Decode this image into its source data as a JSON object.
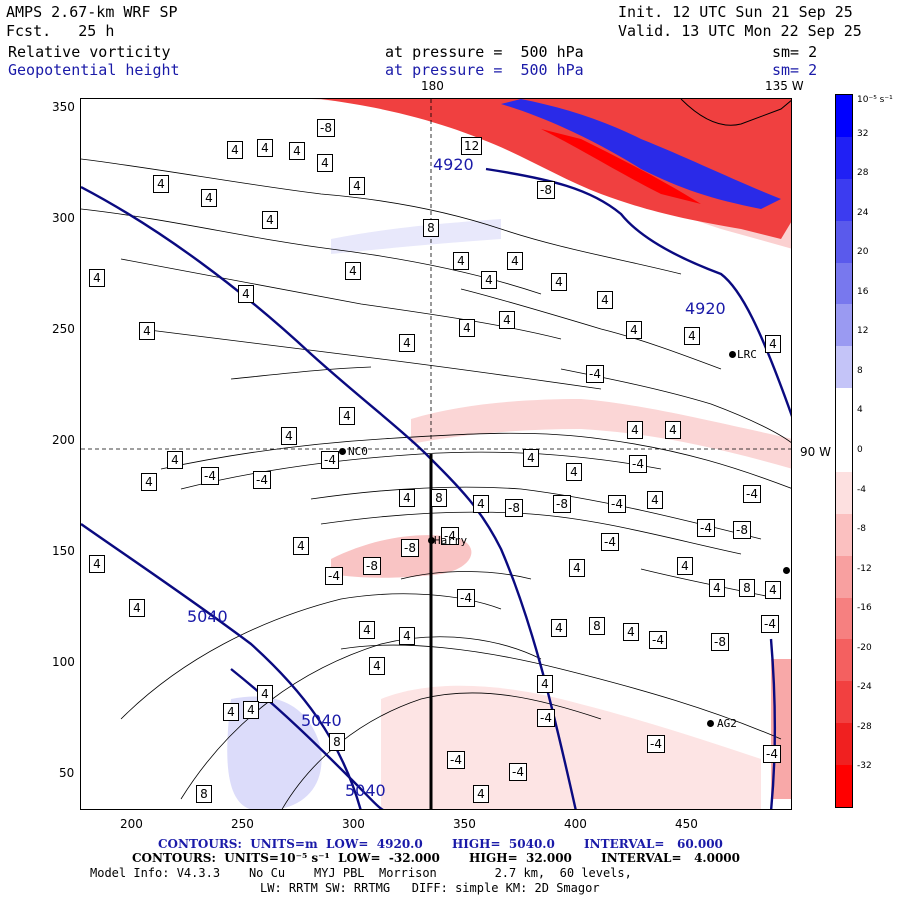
{
  "header": {
    "model": "AMPS 2.67-km WRF SP",
    "fcst": "Fcst.   25 h",
    "init": "Init. 12 UTC Sun 21 Sep 25",
    "valid": "Valid. 13 UTC Mon 22 Sep 25",
    "field1": "Relative vorticity",
    "field2": "Geopotential height",
    "pressure1": "at pressure =  500 hPa",
    "pressure2": "at pressure =  500 hPa",
    "sm1": "sm= 2",
    "sm2": "sm= 2"
  },
  "map": {
    "x_ticks": [
      "200",
      "250",
      "300",
      "350",
      "400",
      "450"
    ],
    "y_ticks": [
      "350",
      "300",
      "250",
      "200",
      "150",
      "100",
      "50"
    ],
    "meridian_180": "180",
    "meridian_135": "135 W",
    "parallel_90": "90 W",
    "height_labels": [
      "4920",
      "4920",
      "5040",
      "5040",
      "5040"
    ],
    "vorticity_labels": [
      "4",
      "-4",
      "8",
      "-8",
      "12"
    ],
    "stations": [
      {
        "name": "NC0"
      },
      {
        "name": "Harry"
      },
      {
        "name": "LRC"
      },
      {
        "name": "AG2"
      }
    ]
  },
  "colorbar": {
    "unit": "10⁻⁵ s⁻¹",
    "labels": [
      "32",
      "28",
      "24",
      "20",
      "16",
      "12",
      "8",
      "4",
      "0",
      "-4",
      "-8",
      "-12",
      "-16",
      "-20",
      "-24",
      "-28",
      "-32"
    ],
    "colors": [
      "#0000ff",
      "#2020f5",
      "#3c3cf0",
      "#5a5aec",
      "#7878ee",
      "#9a9af2",
      "#c4c4f8",
      "#ffffff",
      "#ffffff",
      "#fde0e0",
      "#fbc0c0",
      "#f8a0a0",
      "#f68080",
      "#f46060",
      "#f24040",
      "#f02020",
      "#ff0000"
    ]
  },
  "footer": {
    "line1": "CONTOURS:  UNITS=m  LOW=  4920.0       HIGH=  5040.0       INTERVAL=   60.000",
    "line2": "CONTOURS:  UNITS=10⁻⁵ s⁻¹  LOW=  -32.000       HIGH=  32.000       INTERVAL=   4.0000",
    "line3": "Model Info: V4.3.3    No Cu    MYJ PBL  Morrison        2.7 km,  60 levels,",
    "line4": "LW: RRTM SW: RRTMG   DIFF: simple KM: 2D Smagor"
  }
}
